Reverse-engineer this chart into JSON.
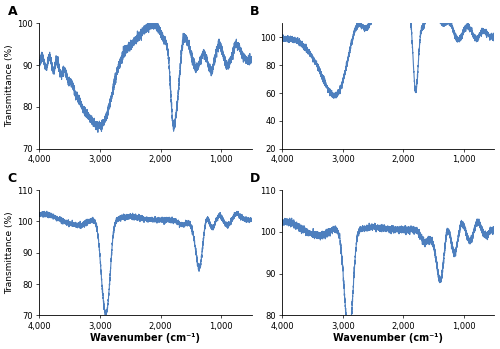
{
  "title_A": "A",
  "title_B": "B",
  "title_C": "C",
  "title_D": "D",
  "xlabel": "Wavenumber (cm⁻¹)",
  "ylabel_left": "Transmittance (%)",
  "line_color": "#4d7fbe",
  "linewidth": 0.8,
  "xlim": [
    4000,
    500
  ],
  "ylim_A": [
    70,
    100
  ],
  "ylim_B": [
    20,
    110
  ],
  "ylim_C": [
    70,
    110
  ],
  "ylim_D": [
    80,
    110
  ],
  "yticks_A": [
    70,
    80,
    90,
    100
  ],
  "yticks_B": [
    20,
    40,
    60,
    80,
    100
  ],
  "yticks_C": [
    70,
    80,
    90,
    100,
    110
  ],
  "yticks_D": [
    80,
    90,
    100,
    110
  ],
  "xticks": [
    4000,
    3000,
    2000,
    1000
  ],
  "xtick_labels": [
    "4,000",
    "3,000",
    "2,000",
    "1,000"
  ],
  "background": "white"
}
